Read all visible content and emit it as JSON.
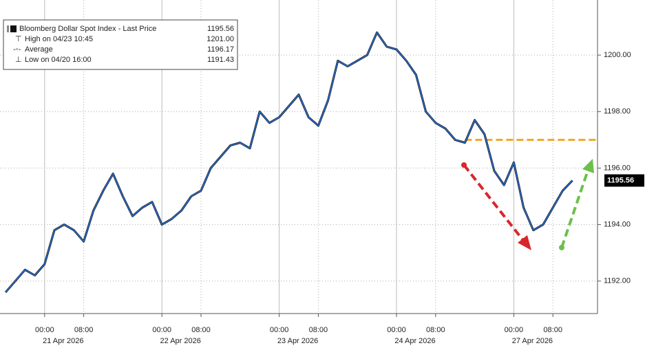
{
  "chart_data": {
    "type": "line",
    "legend": {
      "title": "Bloomberg Dollar Spot Index - Last Price",
      "title_value": "1195.56",
      "rows": [
        {
          "name": "High on 04/23 10:45",
          "value": "1201.00"
        },
        {
          "name": "Average",
          "value": "1196.17"
        },
        {
          "name": "Low on 04/20 16:00",
          "value": "1191.43"
        }
      ]
    },
    "x": [
      "2026-04-20 16:00",
      "2026-04-20 18:00",
      "2026-04-20 20:00",
      "2026-04-20 22:00",
      "2026-04-21 00:00",
      "2026-04-21 02:00",
      "2026-04-21 04:00",
      "2026-04-21 06:00",
      "2026-04-21 08:00",
      "2026-04-21 10:00",
      "2026-04-21 12:00",
      "2026-04-21 14:00",
      "2026-04-21 16:00",
      "2026-04-21 18:00",
      "2026-04-21 20:00",
      "2026-04-21 22:00",
      "2026-04-22 00:00",
      "2026-04-22 02:00",
      "2026-04-22 04:00",
      "2026-04-22 06:00",
      "2026-04-22 08:00",
      "2026-04-22 10:00",
      "2026-04-22 12:00",
      "2026-04-22 14:00",
      "2026-04-22 16:00",
      "2026-04-22 18:00",
      "2026-04-22 20:00",
      "2026-04-22 22:00",
      "2026-04-23 00:00",
      "2026-04-23 02:00",
      "2026-04-23 04:00",
      "2026-04-23 06:00",
      "2026-04-23 08:00",
      "2026-04-23 10:00",
      "2026-04-23 12:00",
      "2026-04-23 14:00",
      "2026-04-23 16:00",
      "2026-04-23 18:00",
      "2026-04-23 20:00",
      "2026-04-23 22:00",
      "2026-04-24 00:00",
      "2026-04-24 02:00",
      "2026-04-24 04:00",
      "2026-04-24 06:00",
      "2026-04-24 08:00",
      "2026-04-24 10:00",
      "2026-04-24 12:00",
      "2026-04-24 14:00",
      "2026-04-26 16:00",
      "2026-04-26 18:00",
      "2026-04-26 20:00",
      "2026-04-26 22:00",
      "2026-04-27 00:00",
      "2026-04-27 02:00",
      "2026-04-27 04:00",
      "2026-04-27 06:00",
      "2026-04-27 08:00",
      "2026-04-27 10:00",
      "2026-04-27 12:00"
    ],
    "series": [
      {
        "name": "Bloomberg Dollar Spot Index",
        "color": "#2a6fd6",
        "values": [
          1191.6,
          1192.0,
          1192.4,
          1192.2,
          1192.6,
          1193.8,
          1194.0,
          1193.8,
          1193.4,
          1194.5,
          1195.2,
          1195.8,
          1195.0,
          1194.3,
          1194.6,
          1194.8,
          1194.0,
          1194.2,
          1194.5,
          1195.0,
          1195.2,
          1196.0,
          1196.4,
          1196.8,
          1196.9,
          1196.7,
          1198.0,
          1197.6,
          1197.8,
          1198.2,
          1198.6,
          1197.8,
          1197.5,
          1198.4,
          1199.8,
          1199.6,
          1199.8,
          1200.0,
          1200.8,
          1200.3,
          1200.2,
          1199.8,
          1199.3,
          1198.0,
          1197.6,
          1197.4,
          1197.0,
          1196.9,
          1197.7,
          1197.2,
          1195.9,
          1195.4,
          1196.2,
          1194.6,
          1193.8,
          1194.0,
          1194.6,
          1195.2,
          1195.56
        ]
      }
    ],
    "last_price": {
      "value": 1195.56,
      "label": "1195.56"
    },
    "level_line": {
      "value": 1197,
      "color": "#f5a623"
    },
    "ylim": [
      1190.85,
      1201.95
    ],
    "yticks": [
      {
        "value": 1192,
        "label": "1192.00"
      },
      {
        "value": 1194,
        "label": "1194.00"
      },
      {
        "value": 1196,
        "label": "1196.00"
      },
      {
        "value": 1198,
        "label": "1198.00"
      },
      {
        "value": 1200,
        "label": "1200.00"
      }
    ],
    "xticks": [
      {
        "value": "2026-04-21 00:00",
        "label": "00:00"
      },
      {
        "value": "2026-04-21 08:00",
        "label": "08:00"
      },
      {
        "value": "2026-04-22 00:00",
        "label": "00:00"
      },
      {
        "value": "2026-04-22 08:00",
        "label": "08:00"
      },
      {
        "value": "2026-04-23 00:00",
        "label": "00:00"
      },
      {
        "value": "2026-04-23 08:00",
        "label": "08:00"
      },
      {
        "value": "2026-04-24 00:00",
        "label": "00:00"
      },
      {
        "value": "2026-04-24 08:00",
        "label": "08:00"
      },
      {
        "value": "2026-04-27 00:00",
        "label": "00:00"
      },
      {
        "value": "2026-04-27 08:00",
        "label": "08:00"
      }
    ],
    "xdays": [
      {
        "value": "2026-04-21 00:00",
        "label": "21 Apr 2026"
      },
      {
        "value": "2026-04-22 00:00",
        "label": "22 Apr 2026"
      },
      {
        "value": "2026-04-23 00:00",
        "label": "23 Apr 2026"
      },
      {
        "value": "2026-04-24 00:00",
        "label": "24 Apr 2026"
      },
      {
        "value": "2026-04-27 00:00",
        "label": "27 Apr 2026"
      }
    ],
    "grid": true
  }
}
